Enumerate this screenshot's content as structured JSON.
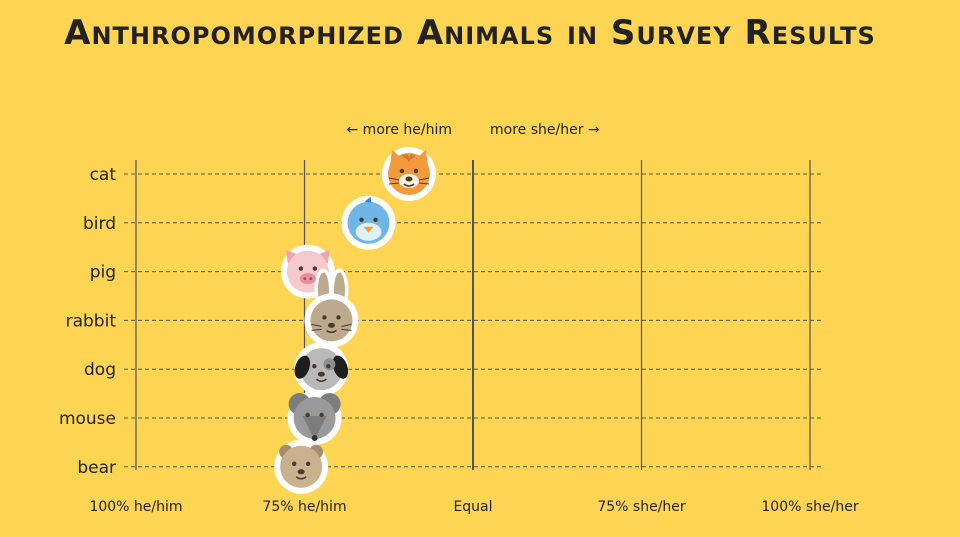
{
  "colors": {
    "background": "#FDD553",
    "text": "#222222",
    "grid": "#555555"
  },
  "chart_data": {
    "type": "scatter",
    "title": "Anthropomorphized Animals in Survey Results",
    "direction_left": "← more he/him",
    "direction_right": "more she/her →",
    "x_ticks": [
      "100% he/him",
      "75% he/him",
      "Equal",
      "75% she/her",
      "100% she/her"
    ],
    "x_tick_values": [
      -100,
      -50,
      0,
      50,
      100
    ],
    "xlim": [
      -100,
      100
    ],
    "grid": true,
    "categories": [
      "cat",
      "bird",
      "pig",
      "rabbit",
      "dog",
      "mouse",
      "bear"
    ],
    "values": [
      -19,
      -31,
      -49,
      -42,
      -45,
      -47,
      -51
    ],
    "markers": [
      "cat-icon",
      "bird-icon",
      "pig-icon",
      "rabbit-icon",
      "dog-icon",
      "mouse-icon",
      "bear-icon"
    ],
    "marker_colors": [
      "#F39A3A",
      "#6FB5E8",
      "#F6C9CF",
      "#BDA98C",
      "#B9B9B9",
      "#9A9A9A",
      "#C9B08E"
    ]
  }
}
